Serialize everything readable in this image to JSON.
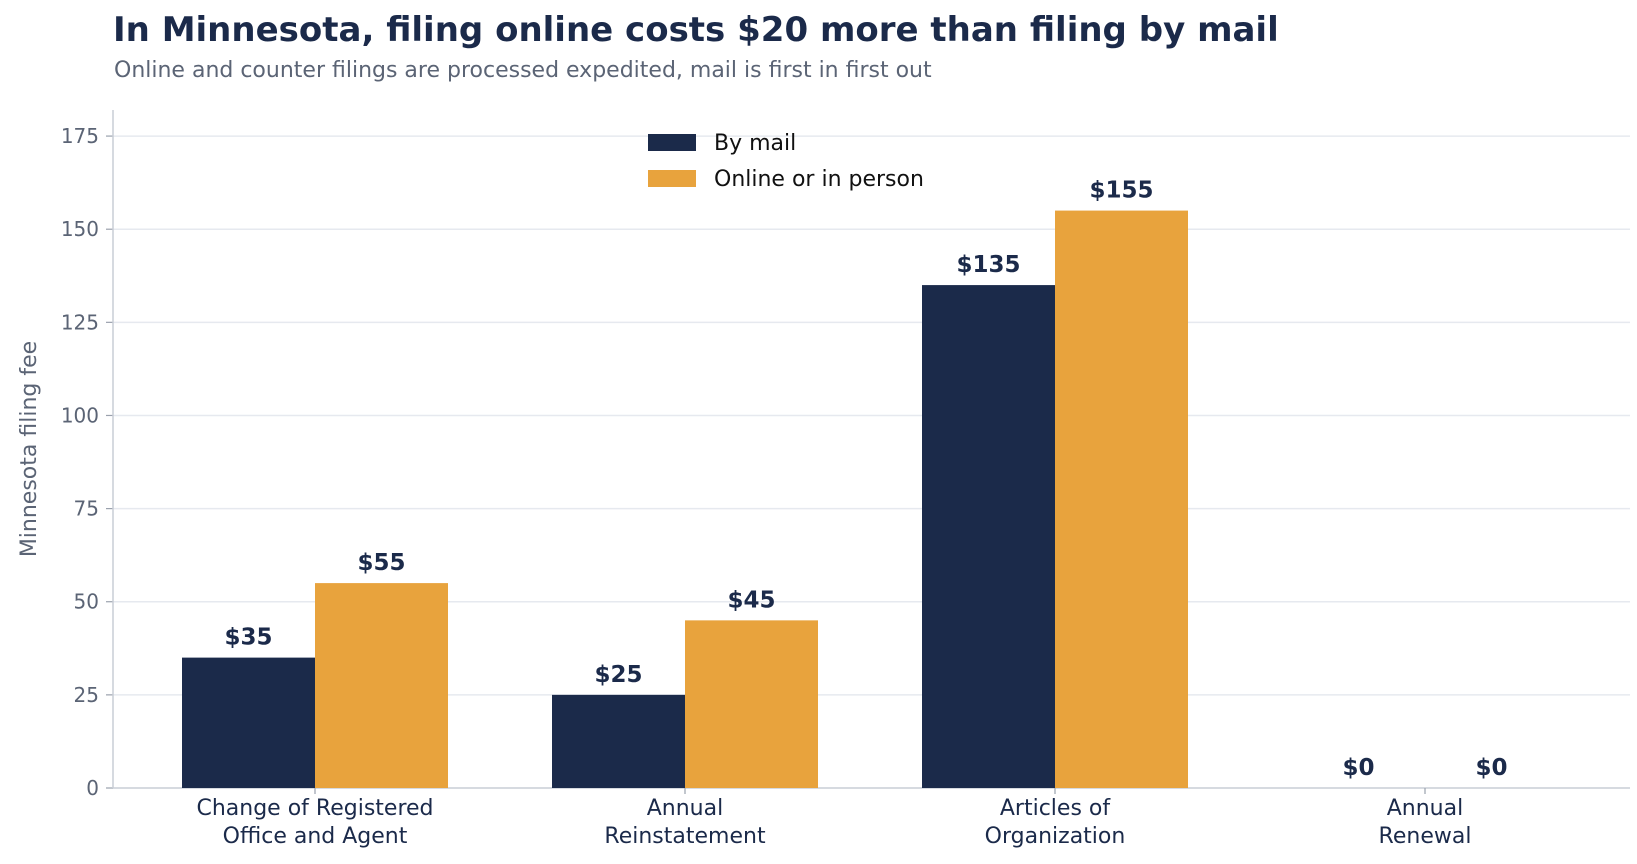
{
  "title": "In Minnesota, filing online costs $20 more than filing by mail",
  "subtitle": "Online and counter filings are processed expedited, mail is first in first out",
  "chart_data": {
    "type": "bar",
    "title": "In Minnesota, filing online costs $20 more than filing by mail",
    "subtitle": "Online and counter filings are processed expedited, mail is first in first out",
    "categories": [
      [
        "Change of Registered",
        "Office and Agent"
      ],
      [
        "Annual",
        "Reinstatement"
      ],
      [
        "Articles of",
        "Organization"
      ],
      [
        "Annual",
        "Renewal"
      ]
    ],
    "series": [
      {
        "name": "By mail",
        "color": "#1b2a4a",
        "values": [
          35,
          25,
          135,
          0
        ],
        "labels": [
          "$35",
          "$25",
          "$135",
          "$0"
        ]
      },
      {
        "name": "Online or in person",
        "color": "#e8a33d",
        "values": [
          55,
          45,
          155,
          0
        ],
        "labels": [
          "$55",
          "$45",
          "$155",
          "$0"
        ]
      }
    ],
    "xlabel": "",
    "ylabel": "Minnesota filing fee",
    "ylim": [
      0,
      182
    ],
    "yticks": [
      0,
      25,
      50,
      75,
      100,
      125,
      150,
      175
    ],
    "grid": "horizontal",
    "legend_position": "top-center"
  }
}
